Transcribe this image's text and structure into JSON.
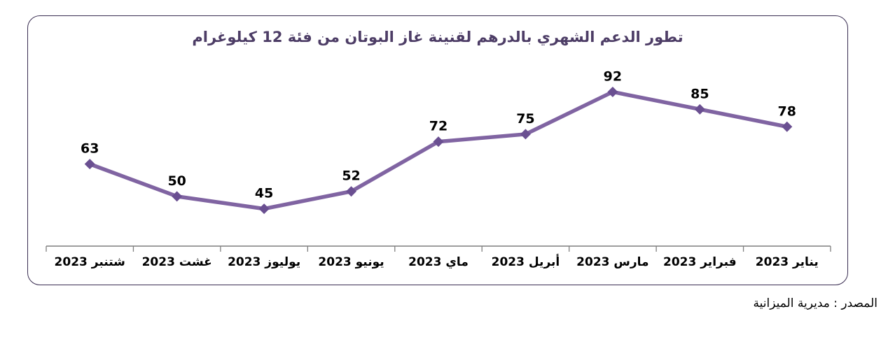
{
  "chart": {
    "title": "تطور الدعم الشهري بالدرهم لقنينة غاز البوتان من فئة 12 كيلوغرام",
    "source": "المصدر : مديرية الميزانية"
  },
  "chart_data": {
    "type": "line",
    "title": "تطور الدعم الشهري بالدرهم لقنينة غاز البوتان من فئة 12 كيلوغرام",
    "categories": [
      "يناير 2023",
      "فبراير 2023",
      "مارس 2023",
      "أبريل 2023",
      "ماي 2023",
      "يونيو 2023",
      "يوليوز 2023",
      "غشت 2023",
      "شتنبر 2023"
    ],
    "values": [
      78,
      85,
      92,
      75,
      72,
      52,
      45,
      50,
      63
    ],
    "xlabel": "",
    "ylabel": "",
    "ylim": [
      30,
      100
    ],
    "x_axis_direction": "rtl",
    "marker": "diamond",
    "data_labels": true,
    "grid": false,
    "legend": false
  },
  "colors": {
    "line": "#8064a2",
    "marker_fill": "#6a4f91",
    "title_text": "#4d3d66",
    "axis": "#7f7f7f",
    "data_label_text": "#000000",
    "frame_border": "#3a2e52"
  }
}
